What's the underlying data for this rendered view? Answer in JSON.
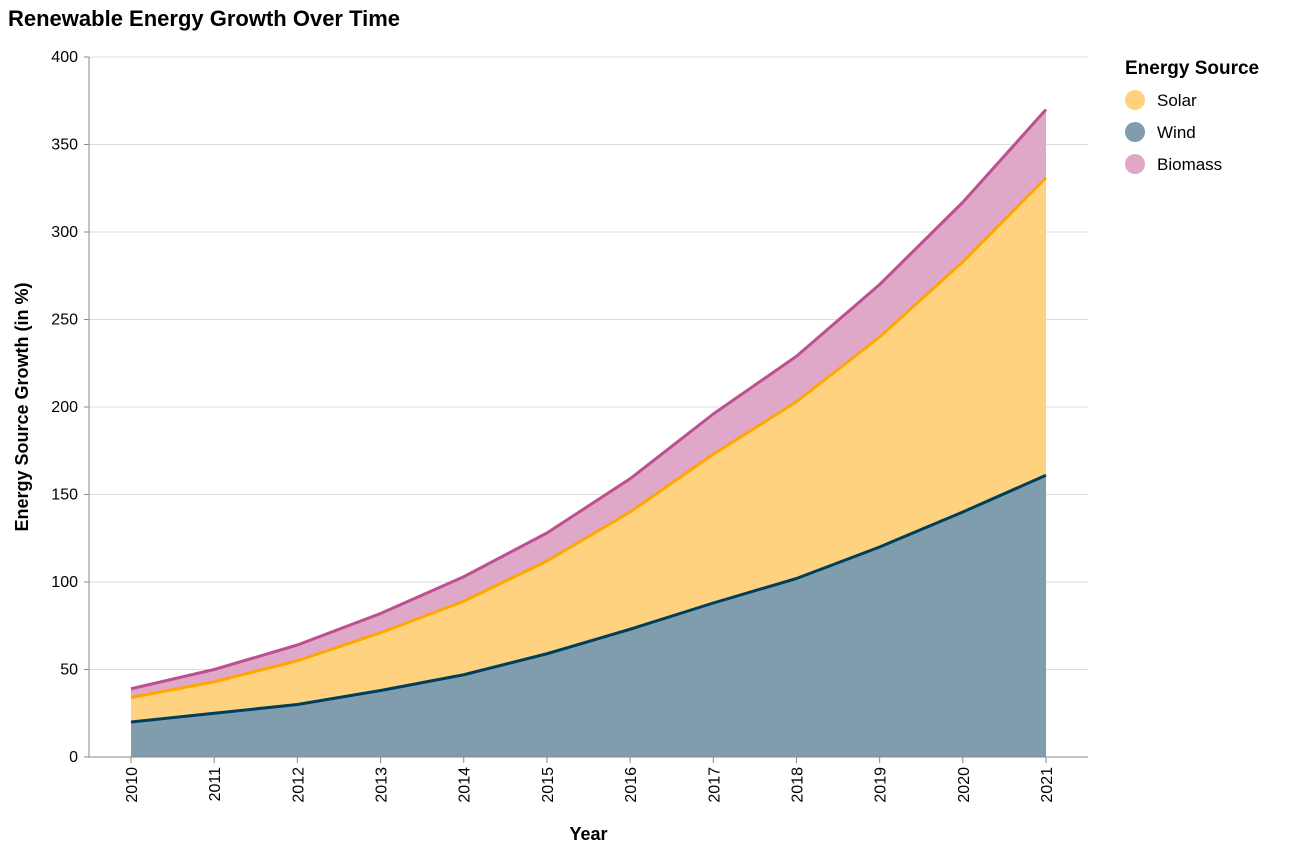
{
  "chart_data": {
    "type": "area",
    "stacked": true,
    "title": "Renewable Energy Growth Over Time",
    "xlabel": "Year",
    "ylabel": "Energy Source Growth (in %)",
    "ylim": [
      0,
      400
    ],
    "yticks": [
      0,
      50,
      100,
      150,
      200,
      250,
      300,
      350,
      400
    ],
    "grid": true,
    "x": [
      "2010",
      "2011",
      "2012",
      "2013",
      "2014",
      "2015",
      "2016",
      "2017",
      "2018",
      "2019",
      "2020",
      "2021"
    ],
    "series": [
      {
        "name": "Wind",
        "values": [
          20,
          25,
          30,
          38,
          47,
          59,
          73,
          88,
          102,
          120,
          140,
          161
        ],
        "fill": "#7f9dad",
        "line": "#003f5c"
      },
      {
        "name": "Solar",
        "values": [
          14,
          18,
          25,
          33,
          42,
          53,
          67,
          85,
          101,
          120,
          143,
          170
        ],
        "fill": "#ffd27f",
        "line": "#ffa600"
      },
      {
        "name": "Biomass",
        "values": [
          5,
          7,
          9,
          11,
          14,
          16,
          19,
          23,
          26,
          30,
          34,
          39
        ],
        "fill": "#dfa8c9",
        "line": "#bc5090"
      }
    ],
    "legend": {
      "title": "Energy Source",
      "position": "top-right",
      "order": [
        "Solar",
        "Wind",
        "Biomass"
      ]
    }
  }
}
